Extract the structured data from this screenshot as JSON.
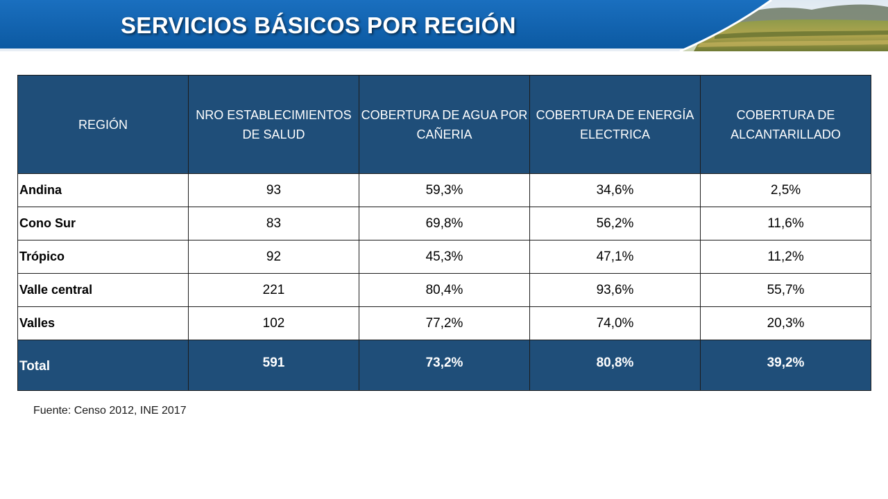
{
  "header": {
    "title": "SERVICIOS BÁSICOS POR REGIÓN",
    "banner_color": "#0e5ea8",
    "title_color": "#ffffff"
  },
  "table": {
    "header_color": "#1f4e79",
    "columns": [
      "REGIÓN",
      "NRO ESTABLECIMIENTOS DE SALUD",
      "COBERTURA DE AGUA POR CAÑERIA",
      "COBERTURA DE ENERGÍA ELECTRICA",
      "COBERTURA DE ALCANTARILLADO"
    ],
    "rows": [
      [
        "Andina",
        "93",
        "59,3%",
        "34,6%",
        "2,5%"
      ],
      [
        "Cono Sur",
        "83",
        "69,8%",
        "56,2%",
        "11,6%"
      ],
      [
        "Trópico",
        "92",
        "45,3%",
        "47,1%",
        "11,2%"
      ],
      [
        "Valle central",
        "221",
        "80,4%",
        "93,6%",
        "55,7%"
      ],
      [
        "Valles",
        "102",
        "77,2%",
        "74,0%",
        "20,3%"
      ]
    ],
    "total": [
      "Total",
      "591",
      "73,2%",
      "80,8%",
      "39,2%"
    ]
  },
  "source": "Fuente: Censo 2012, INE 2017"
}
